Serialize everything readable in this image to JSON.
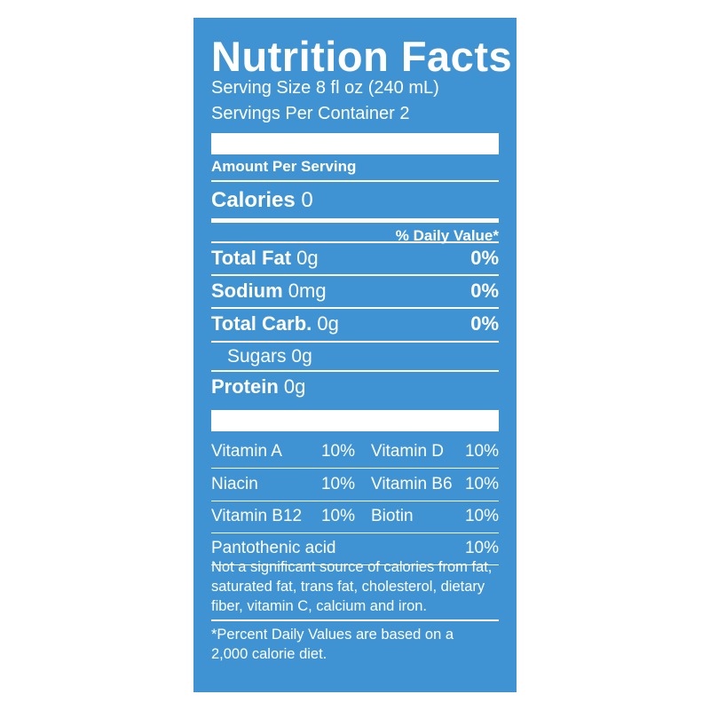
{
  "title": "Nutrition Facts",
  "serving_size": "Serving Size 8 fl oz (240 mL)",
  "servings_per_container": "Servings Per Container 2",
  "amount_per_serving": "Amount Per Serving",
  "calories": {
    "label": "Calories",
    "value": "0"
  },
  "daily_value_header": "% Daily Value*",
  "nutrients": [
    {
      "name": "Total Fat",
      "amount": "0g",
      "dv": "0%"
    },
    {
      "name": "Sodium",
      "amount": "0mg",
      "dv": "0%"
    },
    {
      "name": "Total Carb.",
      "amount": "0g",
      "dv": "0%"
    },
    {
      "name": "Sugars",
      "amount": "0g"
    },
    {
      "name": "Protein",
      "amount": "0g"
    }
  ],
  "vitamins": [
    [
      "Vitamin A",
      "10%",
      "Vitamin D",
      "10%"
    ],
    [
      "Niacin",
      "10%",
      "Vitamin B6",
      "10%"
    ],
    [
      "Vitamin B12",
      "10%",
      "Biotin",
      "10%"
    ],
    [
      "Pantothenic acid",
      "10%"
    ]
  ],
  "footnote": "Not a significant source of calories from fat, saturated fat, trans fat, cholesterol, dietary fiber, vitamin C, calcium and iron.",
  "daily_value_note": "*Percent Daily Values are based on a 2,000 calorie diet."
}
